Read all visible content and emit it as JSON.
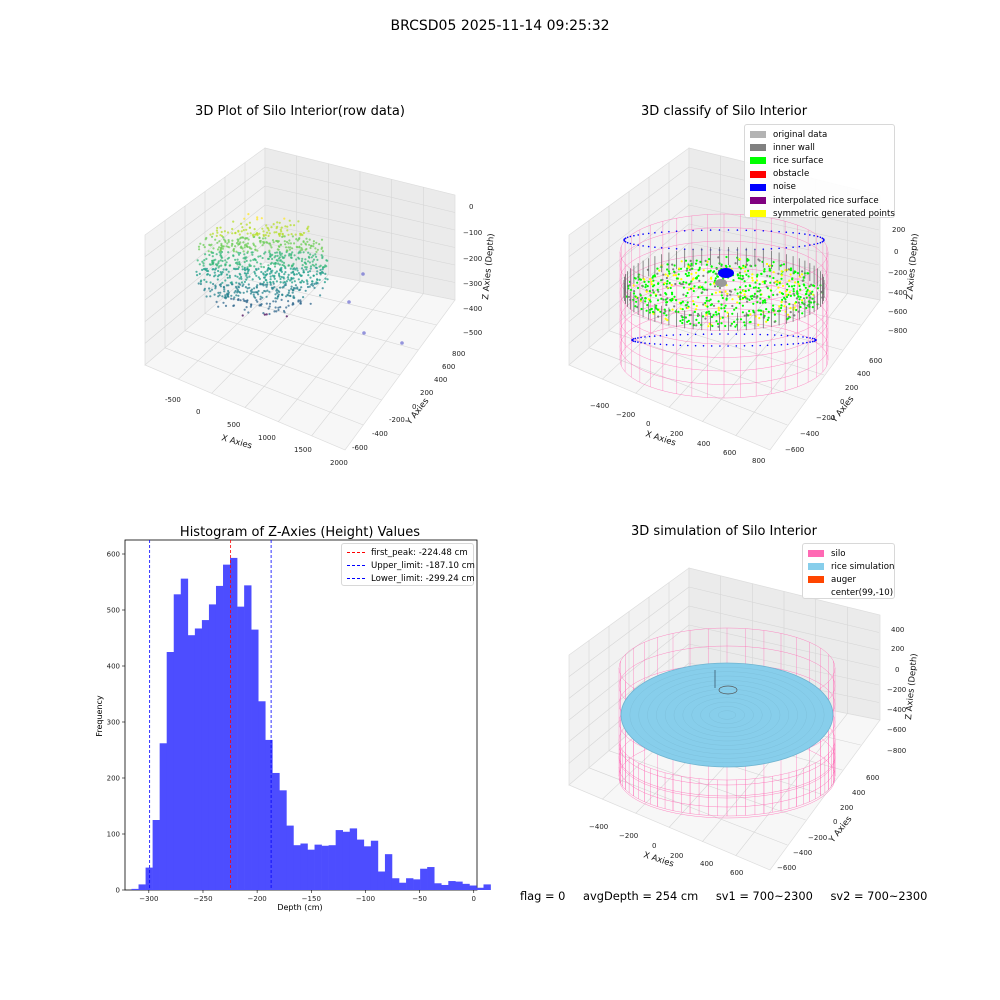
{
  "header": {
    "title": "BRCSD05 2025-11-14 09:25:32"
  },
  "plots": {
    "raw": {
      "title": "3D Plot of Silo Interior(row data)",
      "xlabel": "X Axies",
      "ylabel": "Y Axies",
      "zlabel": "Z Axies (Depth)",
      "xticks": [
        "-500",
        "0",
        "500",
        "1000",
        "1500",
        "2000"
      ],
      "yticks": [
        "-600",
        "-400",
        "-200",
        "0",
        "200",
        "400",
        "600",
        "800"
      ],
      "zticks": [
        "0",
        "−100",
        "−200",
        "−300",
        "−400",
        "−500"
      ]
    },
    "classify": {
      "title": "3D classify of Silo Interior",
      "xlabel": "X Axies",
      "ylabel": "Y Axies",
      "zlabel": "Z Axies (Depth)",
      "xticks": [
        "−400",
        "−200",
        "0",
        "200",
        "400",
        "600",
        "800"
      ],
      "yticks": [
        "−600",
        "−400",
        "−200",
        "0",
        "200",
        "400",
        "600"
      ],
      "zticks": [
        "200",
        "0",
        "−200",
        "−400",
        "−600",
        "−800"
      ],
      "legend": [
        {
          "label": "original data",
          "color": "#b3b3b3"
        },
        {
          "label": "inner wall",
          "color": "#808080"
        },
        {
          "label": "rice surface",
          "color": "#00ff00"
        },
        {
          "label": "obstacle",
          "color": "#ff0000"
        },
        {
          "label": "noise",
          "color": "#0000ff"
        },
        {
          "label": "interpolated rice surface",
          "color": "#800080"
        },
        {
          "label": "symmetric generated points",
          "color": "#ffff00"
        }
      ]
    },
    "simulation": {
      "title": "3D simulation of Silo Interior",
      "xlabel": "X Axies",
      "ylabel": "Y Axies",
      "zlabel": "Z Axies (Depth)",
      "xticks": [
        "−400",
        "−200",
        "0",
        "200",
        "400",
        "600"
      ],
      "yticks": [
        "−600",
        "−400",
        "−200",
        "0",
        "200",
        "400",
        "600"
      ],
      "zticks": [
        "400",
        "200",
        "0",
        "−200",
        "−400",
        "−600",
        "−800"
      ],
      "legend": [
        {
          "label": "silo",
          "color": "#ff69b4"
        },
        {
          "label": "rice simulation",
          "color": "#87ceeb"
        },
        {
          "label": "auger",
          "color": "#ff4500"
        },
        {
          "label": "center(99,-10)",
          "color": ""
        }
      ]
    }
  },
  "status": {
    "flag": "flag = 0",
    "avg": "avgDepth = 254 cm",
    "sv1": "sv1 = 700~2300",
    "sv2": "sv2 = 700~2300"
  },
  "colors": {
    "hist_bar": "#4d4dff",
    "peak_line": "#ff0000",
    "limit_line": "#0000ff"
  },
  "chart_data": [
    {
      "type": "bar",
      "title": "Histogram of Z-Axies (Height) Values",
      "xlabel": "Depth (cm)",
      "ylabel": "Frequency",
      "xlim": [
        -322,
        3
      ],
      "ylim": [
        0,
        625
      ],
      "xticks": [
        -300,
        -250,
        -200,
        -150,
        -100,
        -50,
        0
      ],
      "xtick_labels": [
        "−300",
        "−250",
        "−200",
        "−150",
        "−100",
        "−50",
        "0"
      ],
      "yticks": [
        0,
        100,
        200,
        300,
        400,
        500,
        600
      ],
      "bin_width": 6.5,
      "bin_start": -316,
      "values": [
        2,
        10,
        40,
        125,
        262,
        425,
        528,
        556,
        455,
        467,
        482,
        510,
        543,
        581,
        593,
        506,
        544,
        465,
        337,
        268,
        209,
        178,
        115,
        80,
        83,
        72,
        81,
        79,
        80,
        107,
        104,
        110,
        90,
        78,
        88,
        33,
        64,
        21,
        13,
        21,
        19,
        38,
        41,
        12,
        9,
        16,
        15,
        11,
        8,
        4,
        10
      ],
      "lines": [
        {
          "name": "first_peak: -224.48 cm",
          "x": -224.48,
          "color": "#ff0000"
        },
        {
          "name": "Upper_limit: -187.10 cm",
          "x": -187.1,
          "color": "#0000ff"
        },
        {
          "name": "Lower_limit: -299.24 cm",
          "x": -299.24,
          "color": "#0000ff"
        }
      ],
      "legend_position": "top-right"
    }
  ]
}
